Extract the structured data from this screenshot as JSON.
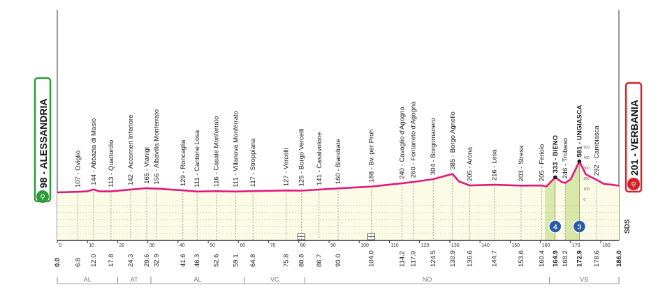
{
  "start_city": {
    "label": "98 - ALESSANDRIA",
    "color": "#2e9a3a"
  },
  "finish_city": {
    "label": "201 - VERBANIA",
    "color": "#d3222a"
  },
  "sponsor_mark": "SDS",
  "colors": {
    "profile": "#e0197d",
    "fill": "#fbfbe6",
    "climb_fill": "#d8e8a8",
    "grid": "#b9b98a",
    "axis": "#333333",
    "region_line": "#8a8a8a"
  },
  "chart_data": {
    "type": "area",
    "xlabel": "km",
    "xlim": [
      0,
      186
    ],
    "x_ticks": [
      0,
      10,
      20,
      30,
      40,
      50,
      60,
      70,
      80,
      90,
      100,
      110,
      120,
      130,
      140,
      150,
      160,
      170,
      180
    ],
    "profile": {
      "km": [
        0,
        6.8,
        10,
        12,
        14,
        17.8,
        24.3,
        27,
        29.6,
        31,
        32.9,
        35,
        41.6,
        46.3,
        52.6,
        59.1,
        64.8,
        75.8,
        80.8,
        86.7,
        93,
        104,
        114.2,
        117.9,
        124.5,
        130.9,
        133,
        136.6,
        144.7,
        153.6,
        160.4,
        162,
        164.9,
        167,
        168.2,
        170,
        172.9,
        175,
        178.6,
        181,
        184,
        186
      ],
      "alt": [
        98,
        107,
        115,
        144,
        113,
        113,
        142,
        152,
        165,
        156,
        156,
        150,
        129,
        111,
        116,
        111,
        117,
        127,
        125,
        141,
        160,
        188,
        240,
        260,
        304,
        385,
        270,
        205,
        216,
        203,
        205,
        190,
        333,
        260,
        246,
        300,
        581,
        380,
        292,
        230,
        215,
        201
      ]
    },
    "towns": [
      {
        "name": "Oviglio",
        "km": 6.8,
        "alt": 107
      },
      {
        "name": "Abbazia di Masio",
        "km": 12.0,
        "alt": 144
      },
      {
        "name": "Quattordio",
        "km": 17.8,
        "alt": 113
      },
      {
        "name": "Accorneri Inferiore",
        "km": 24.3,
        "alt": 142
      },
      {
        "name": "Vianigi",
        "km": 29.6,
        "alt": 165
      },
      {
        "name": "Albavilla Monferrato",
        "km": 32.9,
        "alt": 156
      },
      {
        "name": "Roncaglia",
        "km": 41.6,
        "alt": 129
      },
      {
        "name": "Cantone Losa",
        "km": 46.3,
        "alt": 111
      },
      {
        "name": "Casale Monferrato",
        "km": 52.6,
        "alt": 116
      },
      {
        "name": "Villanova Monferrato",
        "km": 59.1,
        "alt": 111
      },
      {
        "name": "Stroppiana",
        "km": 64.8,
        "alt": 117
      },
      {
        "name": "Vercelli",
        "km": 75.8,
        "alt": 127
      },
      {
        "name": "Borgo Vercelli",
        "km": 80.8,
        "alt": 125
      },
      {
        "name": "Casalvolone",
        "km": 86.7,
        "alt": 141
      },
      {
        "name": "Biandrate",
        "km": 93.0,
        "alt": 160
      },
      {
        "name": "Bv. per Proh",
        "km": 104.0,
        "alt": 188
      },
      {
        "name": "Cavaglio d'Agogna",
        "km": 114.2,
        "alt": 240
      },
      {
        "name": "Fontaneto d'Agogna",
        "km": 117.9,
        "alt": 260
      },
      {
        "name": "Borgomanero",
        "km": 124.5,
        "alt": 304
      },
      {
        "name": "Borgo Agnello",
        "km": 130.9,
        "alt": 385
      },
      {
        "name": "Arona",
        "km": 136.6,
        "alt": 205
      },
      {
        "name": "Lesa",
        "km": 144.7,
        "alt": 216
      },
      {
        "name": "Stresa",
        "km": 153.6,
        "alt": 203
      },
      {
        "name": "Feriolo",
        "km": 160.4,
        "alt": 205
      },
      {
        "name": "BIENO",
        "km": 164.9,
        "alt": 333,
        "bold": true
      },
      {
        "name": "Trobaso",
        "km": 168.2,
        "alt": 246
      },
      {
        "name": "UNGIASCA",
        "km": 172.9,
        "alt": 581,
        "bold": true
      },
      {
        "name": "Cambiasca",
        "km": 178.6,
        "alt": 292
      }
    ],
    "km_labels": [
      "0.0",
      "6.8",
      "12.0",
      "17.8",
      "24.3",
      "29.6",
      "32.9",
      "41.6",
      "46.3",
      "52.6",
      "59.1",
      "64.8",
      "75.8",
      "80.8",
      "86.7",
      "93.0",
      "104.0",
      "114.2",
      "117.9",
      "124.5",
      "130.9",
      "136.6",
      "144.7",
      "153.6",
      "160.4",
      "164.9",
      "168.2",
      "172.9",
      "178.6",
      "186.0"
    ],
    "km_values": [
      0,
      6.8,
      12.0,
      17.8,
      24.3,
      29.6,
      32.9,
      41.6,
      46.3,
      52.6,
      59.1,
      64.8,
      75.8,
      80.8,
      86.7,
      93.0,
      104.0,
      114.2,
      117.9,
      124.5,
      130.9,
      136.6,
      144.7,
      153.6,
      160.4,
      164.9,
      168.2,
      172.9,
      178.6,
      186.0
    ],
    "climb_scale": [
      "500",
      "400",
      "300",
      "200",
      "100",
      "0"
    ],
    "climbs": [
      {
        "label": "4",
        "km": 164.9,
        "start_km": 161.5,
        "color": "#2a5caa"
      },
      {
        "label": "3",
        "km": 172.9,
        "start_km": 168.2,
        "color": "#2a5caa"
      }
    ],
    "sprints_km": [
      80.8,
      104.0
    ],
    "regions": [
      {
        "code": "AL",
        "from": 0,
        "to": 20
      },
      {
        "code": "AT",
        "from": 20,
        "to": 31
      },
      {
        "code": "AL",
        "from": 31,
        "to": 62
      },
      {
        "code": "VC",
        "from": 62,
        "to": 82
      },
      {
        "code": "NO",
        "from": 82,
        "to": 163
      },
      {
        "code": "VB",
        "from": 163,
        "to": 186
      }
    ]
  }
}
